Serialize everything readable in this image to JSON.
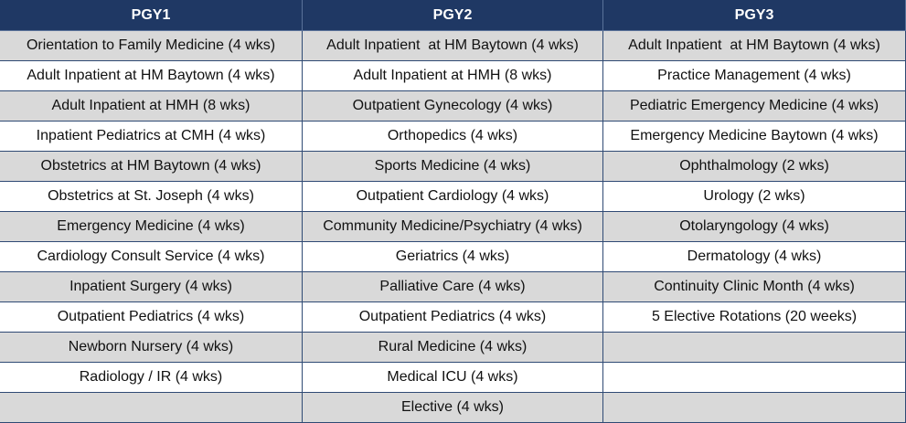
{
  "table": {
    "columns": [
      {
        "header": "PGY1",
        "items": [
          "Orientation to Family Medicine (4 wks)",
          "Adult Inpatient at HM Baytown (4 wks)",
          "Adult Inpatient at HMH (8 wks)",
          "Inpatient Pediatrics at CMH (4 wks)",
          "Obstetrics at HM Baytown (4 wks)",
          "Obstetrics at St. Joseph (4 wks)",
          "Emergency Medicine (4 wks)",
          "Cardiology Consult Service (4 wks)",
          "Inpatient Surgery (4 wks)",
          "Outpatient Pediatrics (4 wks)",
          "Newborn Nursery (4 wks)",
          "Radiology / IR (4 wks)"
        ]
      },
      {
        "header": "PGY2",
        "items": [
          "Adult Inpatient  at HM Baytown (4 wks)",
          "Adult Inpatient at HMH (8 wks)",
          "Outpatient Gynecology (4 wks)",
          "Orthopedics (4 wks)",
          "Sports Medicine (4 wks)",
          "Outpatient Cardiology (4 wks)",
          "Community Medicine/Psychiatry (4 wks)",
          "Geriatrics (4 wks)",
          "Palliative Care (4 wks)",
          "Outpatient Pediatrics (4 wks)",
          "Rural Medicine (4 wks)",
          "Medical ICU (4 wks)",
          "Elective (4 wks)"
        ]
      },
      {
        "header": "PGY3",
        "items": [
          "Adult Inpatient  at HM Baytown (4 wks)",
          "Practice Management (4 wks)",
          "Pediatric Emergency Medicine (4 wks)",
          "Emergency Medicine Baytown (4 wks)",
          "Ophthalmology (2 wks)",
          "Urology (2 wks)",
          "Otolaryngology (4 wks)",
          "Dermatology (4 wks)",
          "Continuity Clinic Month (4 wks)",
          "5 Elective Rotations (20 weeks)"
        ]
      }
    ]
  }
}
